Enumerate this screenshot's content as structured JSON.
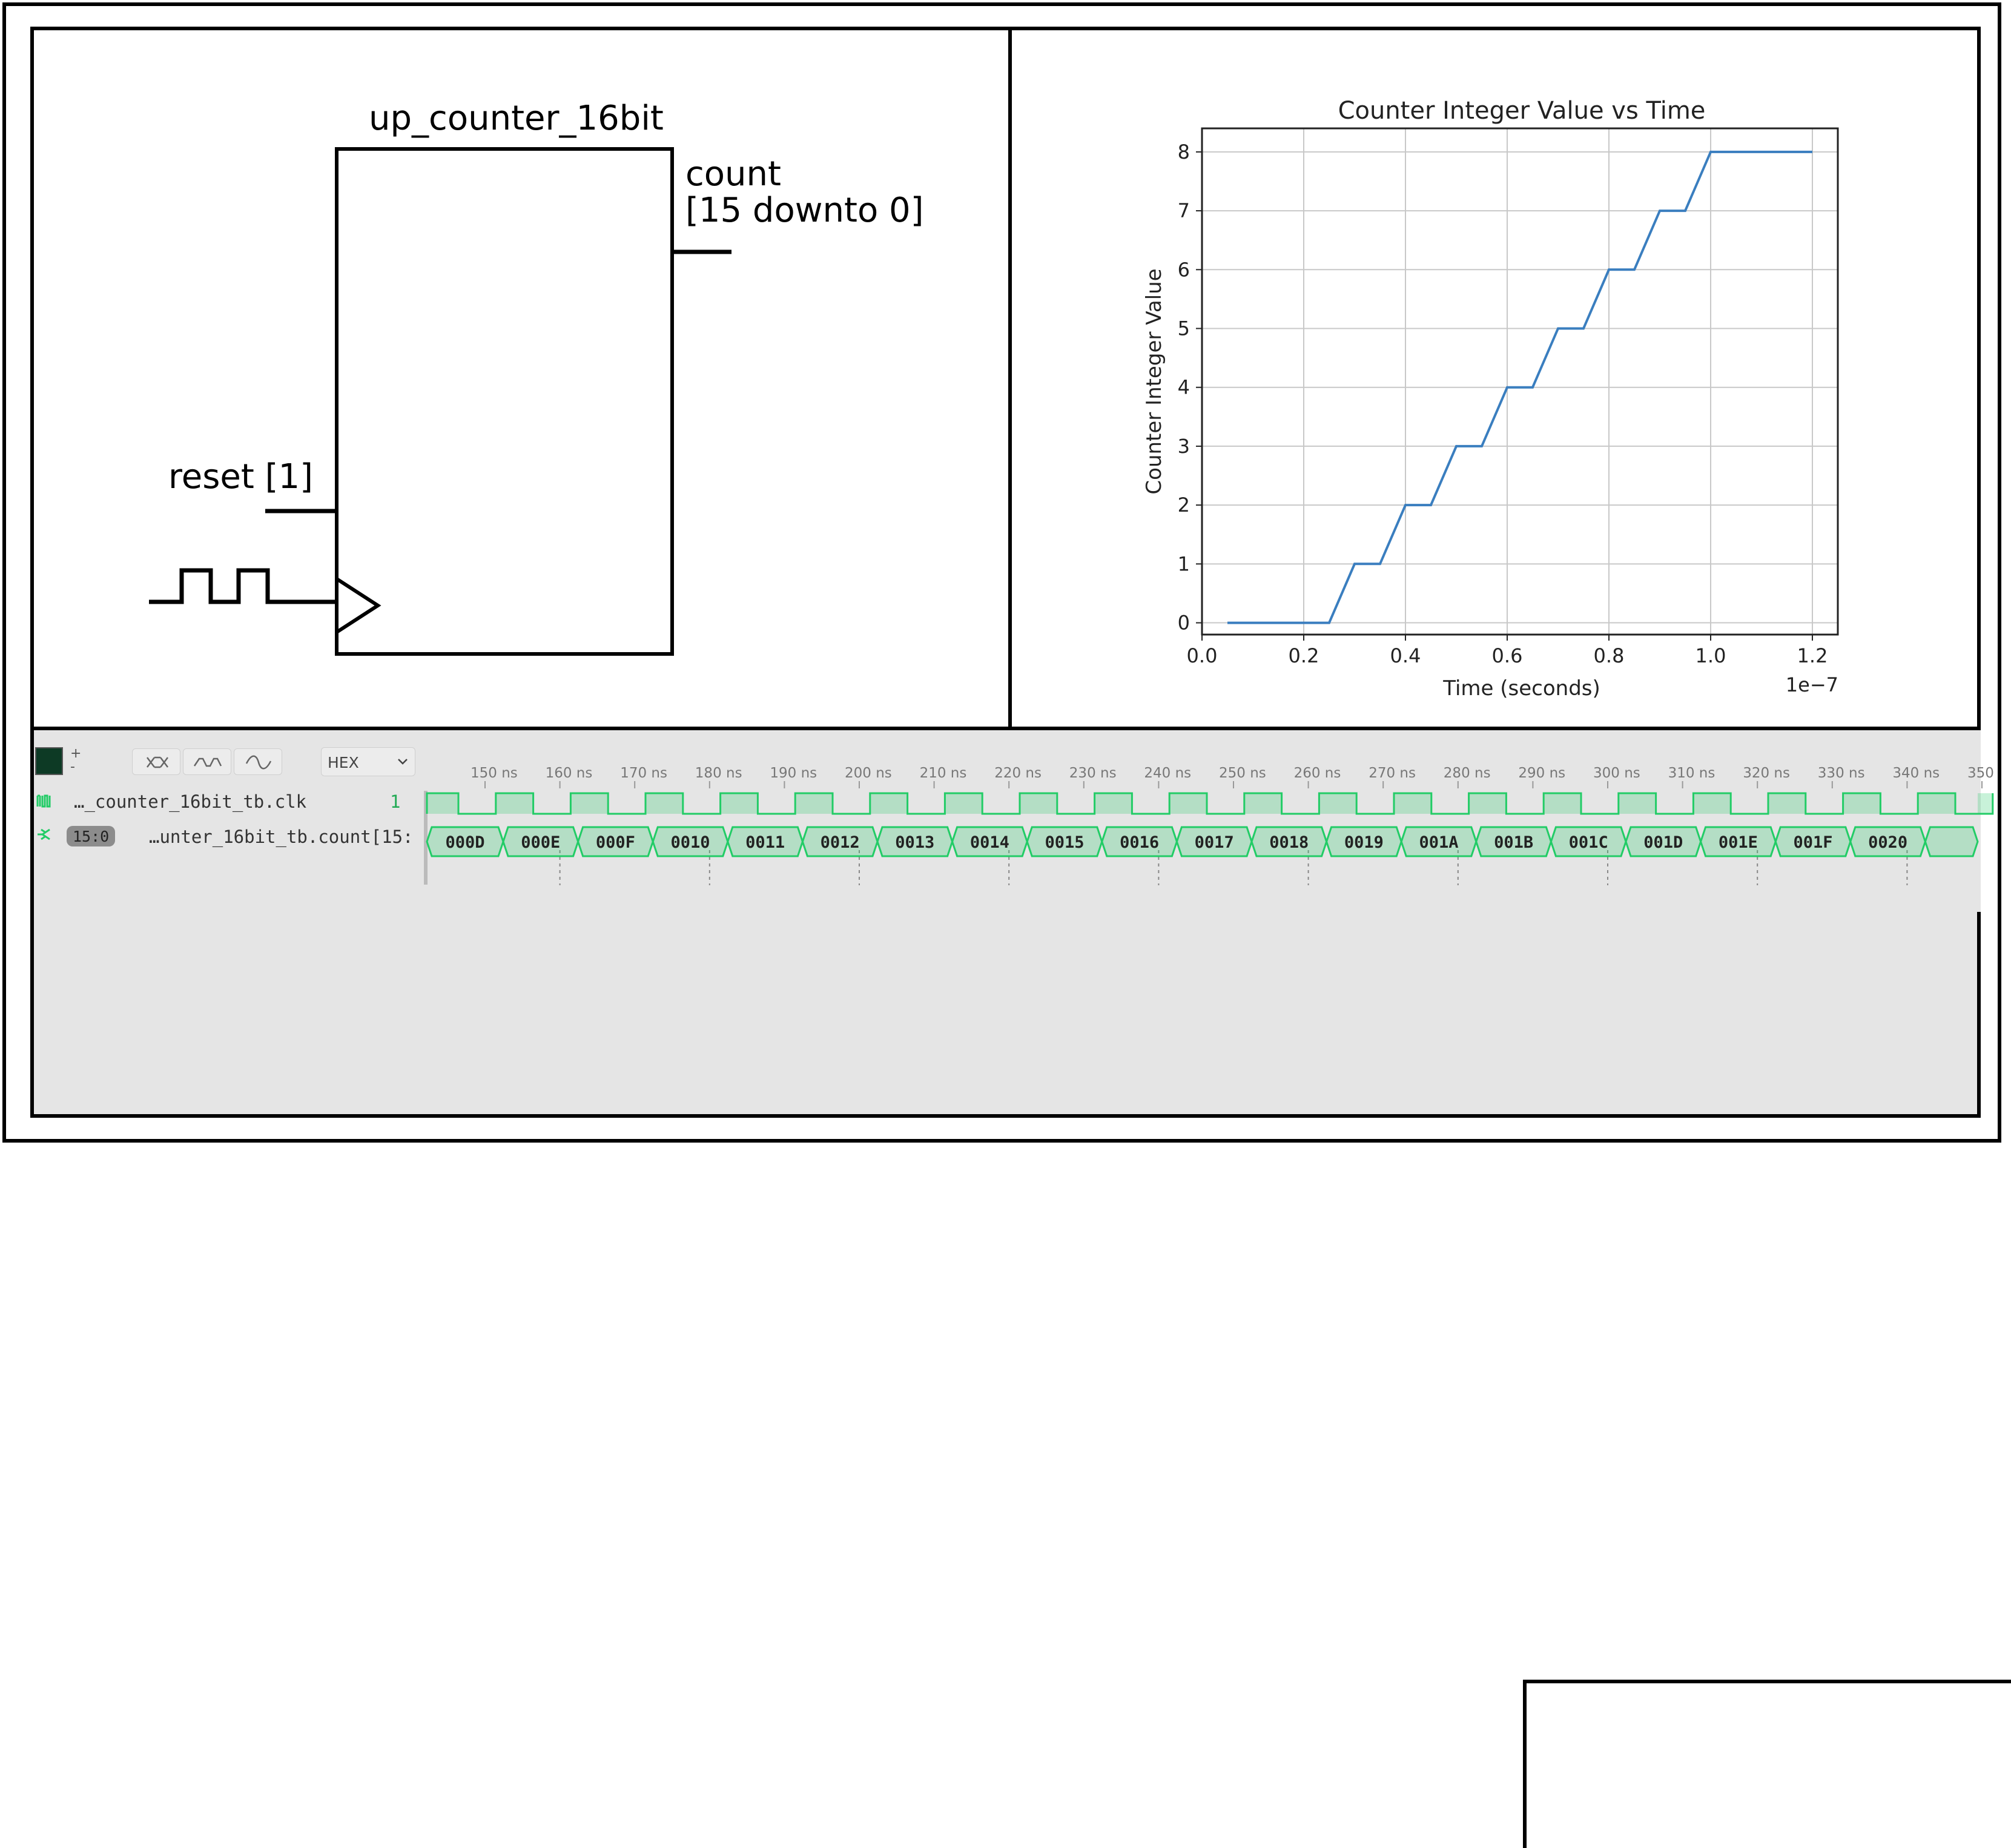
{
  "schematic": {
    "entity_name": "up_counter_16bit",
    "output_port_line1": "count",
    "output_port_line2": "[15 downto 0]",
    "reset_label": "reset [1]"
  },
  "chart_data": {
    "type": "line",
    "title": "Counter Integer Value vs Time",
    "xlabel": "Time (seconds)",
    "ylabel": "Counter Integer Value",
    "x_offset_label": "1e−7",
    "xlim": [
      0.0,
      1.25
    ],
    "ylim": [
      -0.2,
      8.4
    ],
    "x_ticks": [
      0.0,
      0.2,
      0.4,
      0.6,
      0.8,
      1.0,
      1.2
    ],
    "x_tick_labels": [
      "0.0",
      "0.2",
      "0.4",
      "0.6",
      "0.8",
      "1.0",
      "1.2"
    ],
    "y_ticks": [
      0,
      1,
      2,
      3,
      4,
      5,
      6,
      7,
      8
    ],
    "y_tick_labels": [
      "0",
      "1",
      "2",
      "3",
      "4",
      "5",
      "6",
      "7",
      "8"
    ],
    "grid": true,
    "color": "#3a7ebf",
    "series": [
      {
        "x": [
          0.05,
          0.25,
          0.3,
          0.35,
          0.4,
          0.45,
          0.5,
          0.55,
          0.6,
          0.65,
          0.7,
          0.75,
          0.8,
          0.85,
          0.9,
          0.95,
          1.0,
          1.2
        ],
        "y": [
          0,
          0,
          1,
          1,
          2,
          2,
          3,
          3,
          4,
          4,
          5,
          5,
          6,
          6,
          7,
          7,
          8,
          8
        ]
      }
    ]
  },
  "waveform": {
    "format_options_selected": "HEX",
    "time_ticks": [
      "150 ns",
      "160 ns",
      "170 ns",
      "180 ns",
      "190 ns",
      "200 ns",
      "210 ns",
      "220 ns",
      "230 ns",
      "240 ns",
      "250 ns",
      "260 ns",
      "270 ns",
      "280 ns",
      "290 ns",
      "300 ns",
      "310 ns",
      "320 ns",
      "330 ns",
      "340 ns",
      "350"
    ],
    "signals": [
      {
        "name": "…_counter_16bit_tb.clk",
        "value": "1"
      },
      {
        "name": "…unter_16bit_tb.count[15:",
        "badge": "15:0"
      }
    ],
    "count_values": [
      "000D",
      "000E",
      "000F",
      "0010",
      "0011",
      "0012",
      "0013",
      "0014",
      "0015",
      "0016",
      "0017",
      "0018",
      "0019",
      "001A",
      "001B",
      "001C",
      "001D",
      "001E",
      "001F",
      "0020"
    ],
    "wave_color": "#22cc66",
    "zoom_plus": "+",
    "zoom_minus": "-"
  }
}
